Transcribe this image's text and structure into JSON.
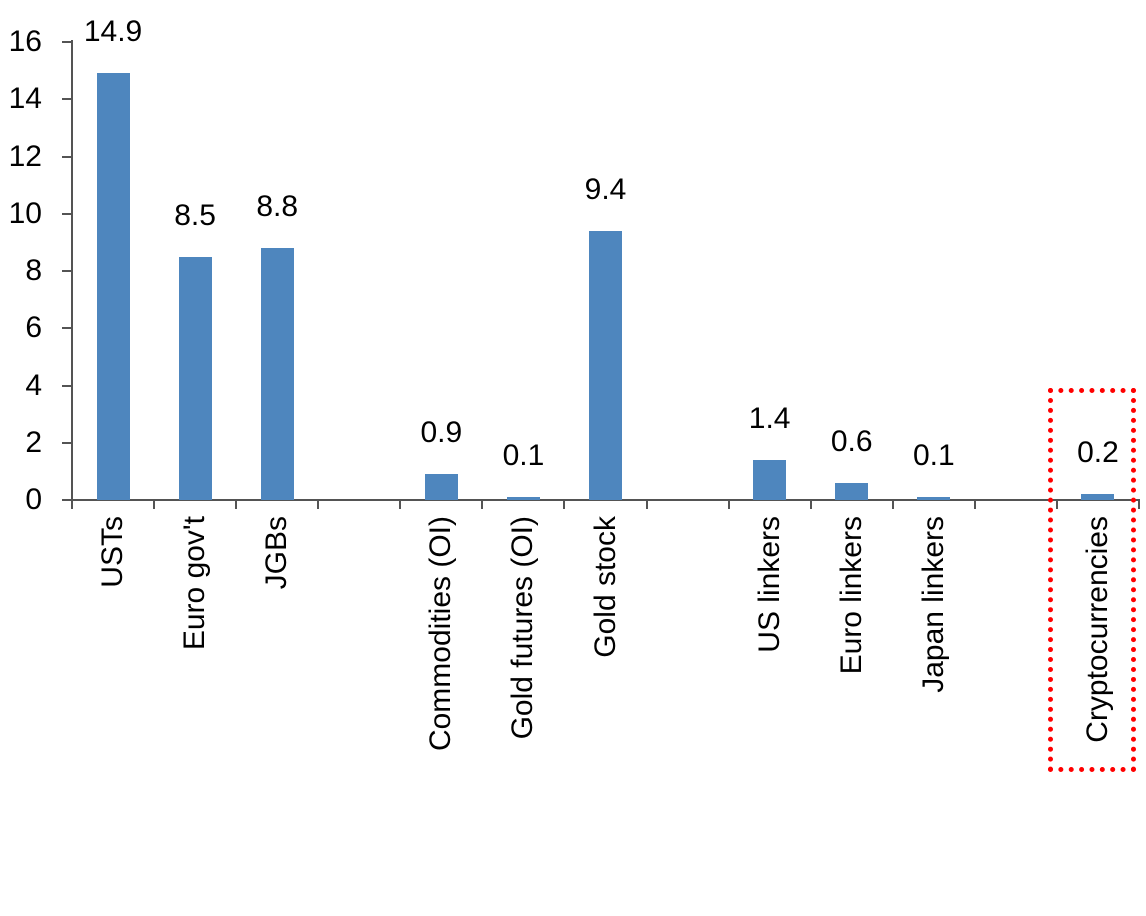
{
  "chart_data": {
    "type": "bar",
    "title": "",
    "xlabel": "",
    "ylabel": "",
    "categories": [
      "USTs",
      "Euro gov't",
      "JGBs",
      "Commodities (OI)",
      "Gold futures (OI)",
      "Gold stock",
      "US linkers",
      "Euro linkers",
      "Japan linkers",
      "Cryptocurrencies"
    ],
    "values": [
      14.9,
      8.5,
      8.8,
      0.9,
      0.1,
      9.4,
      1.4,
      0.6,
      0.1,
      0.2
    ],
    "value_labels": [
      "14.9",
      "8.5",
      "8.8",
      "0.9",
      "0.1",
      "9.4",
      "1.4",
      "0.6",
      "0.1",
      "0.2"
    ],
    "groups": [
      [
        "USTs",
        "Euro gov't",
        "JGBs"
      ],
      [
        "Commodities (OI)",
        "Gold futures (OI)",
        "Gold stock"
      ],
      [
        "US linkers",
        "Euro linkers",
        "Japan linkers"
      ],
      [
        "Cryptocurrencies"
      ]
    ],
    "ylim": [
      0,
      16
    ],
    "yticks": [
      0,
      2,
      4,
      6,
      8,
      10,
      12,
      14,
      16
    ],
    "grid": false,
    "legend": false,
    "bar_color": "#4e86be",
    "axis_color": "#545454",
    "text_color": "#000000",
    "category_label_rotation_deg": 90,
    "highlight": {
      "category": "Cryptocurrencies",
      "style": "red-dotted-rectangle",
      "color": "#ff0000"
    }
  }
}
